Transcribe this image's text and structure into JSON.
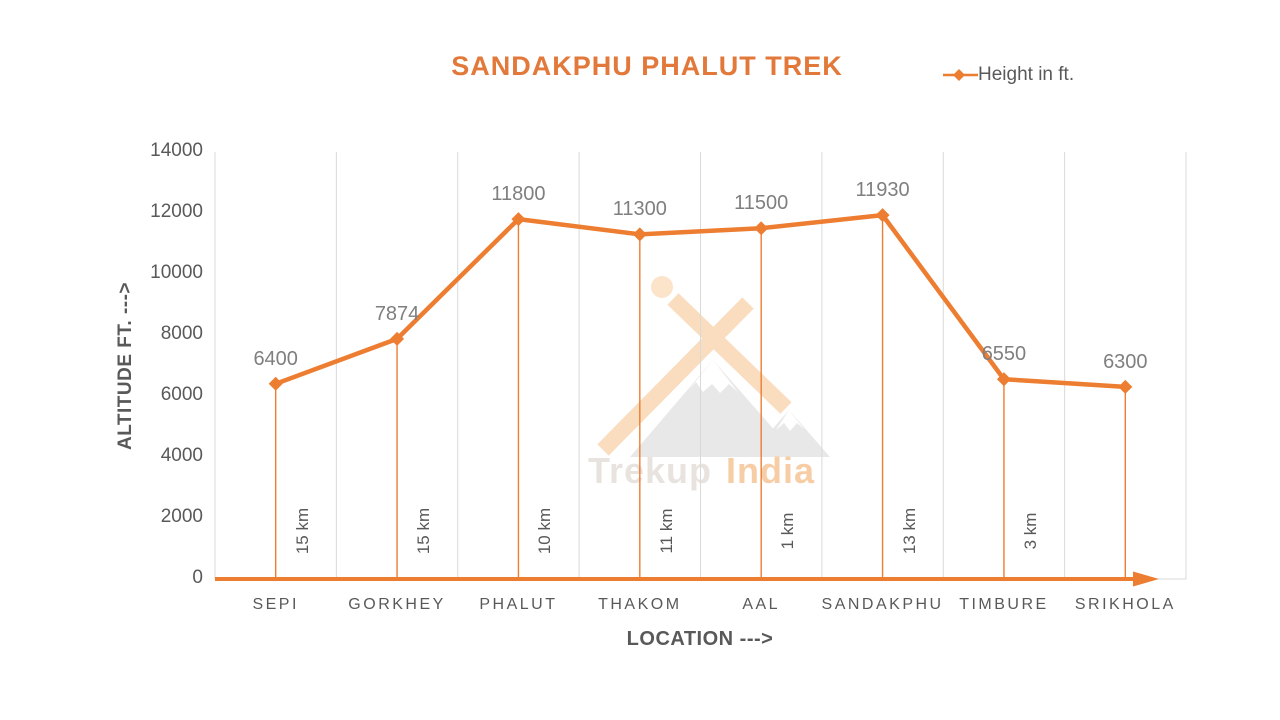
{
  "title": "SANDAKPHU PHALUT TREK",
  "legend": {
    "label": "Height in ft."
  },
  "watermark": {
    "word_gray": "Trekup",
    "word_orange": "India"
  },
  "colors": {
    "accent": "#ED7D31",
    "title": "#E2793B",
    "axis_text": "#595959",
    "data_label": "#7F7F7F",
    "gridline": "#D9D9D9",
    "watermark_orange": "#FADCBE",
    "watermark_gray": "#E8E8E8"
  },
  "chart_data": {
    "type": "line",
    "title": "SANDAKPHU PHALUT TREK",
    "series_name": "Height in ft.",
    "categories": [
      "SEPI",
      "GORKHEY",
      "PHALUT",
      "THAKOM",
      "AAL",
      "SANDAKPHU",
      "TIMBURE",
      "SRIKHOLA"
    ],
    "values": [
      6400,
      7874,
      11800,
      11300,
      11500,
      11930,
      6550,
      6300
    ],
    "segment_distances": [
      "15 km",
      "15 km",
      "10 km",
      "11 km",
      "1 km",
      "13 km",
      "3 km"
    ],
    "xlabel": "LOCATION --->",
    "ylabel": "ALTITUDE FT. --->",
    "ylim": [
      0,
      14000
    ],
    "yticks": [
      0,
      2000,
      4000,
      6000,
      8000,
      10000,
      12000,
      14000
    ],
    "grid": "vertical-category-boundaries",
    "legend_position": "top-right",
    "marker": "diamond"
  }
}
